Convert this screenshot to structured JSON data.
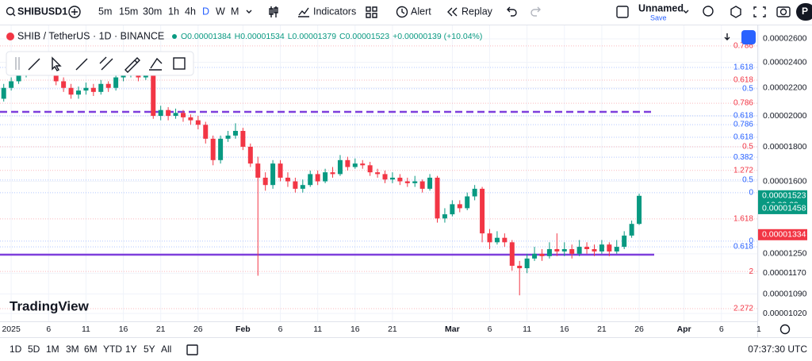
{
  "toolbar": {
    "symbol": "SHIBUSD1",
    "intervals": [
      "5m",
      "15m",
      "30m",
      "1h",
      "4h",
      "D",
      "W",
      "M"
    ],
    "active_interval": 5,
    "indicators": "Indicators",
    "alert": "Alert",
    "replay": "Replay",
    "layout_name": "Unnamed",
    "save": "Save",
    "avatar": "P"
  },
  "legend": {
    "title": "SHIB / TetherUS · 1D · BINANCE",
    "ohlc": [
      "O0.00001384",
      "H0.00001534",
      "L0.00001379",
      "C0.00001523",
      "+0.00000139 (+10.04%)"
    ]
  },
  "logo": "TradingView",
  "bottom_bar": {
    "ranges": [
      "1D",
      "5D",
      "1M",
      "3M",
      "6M",
      "YTD",
      "1Y",
      "5Y",
      "All"
    ],
    "clock": "07:37:30 UTC"
  },
  "chart_data": {
    "type": "candlestick",
    "log_scale": true,
    "up_color": "#089981",
    "down_color": "#f23645",
    "x": [
      0,
      1,
      2,
      3,
      4,
      5,
      6,
      7,
      8,
      9,
      10,
      11,
      12,
      13,
      14,
      15,
      16,
      17,
      18,
      19,
      20,
      21,
      22,
      23,
      24,
      25,
      26,
      27,
      28,
      29,
      30,
      31,
      32,
      33,
      34,
      35,
      36,
      37,
      38,
      39,
      40,
      41,
      42,
      43,
      44,
      45,
      46,
      47,
      48,
      49,
      50,
      51,
      52,
      53,
      54,
      55,
      56,
      57,
      58,
      59,
      60,
      61,
      62,
      63,
      64,
      65,
      66,
      67,
      68,
      69,
      70,
      71,
      72,
      73,
      74,
      75,
      76,
      77,
      78,
      79,
      80,
      81,
      82,
      83,
      84,
      85,
      86,
      87
    ],
    "open": [
      2.13e-05,
      2.15e-05,
      2.12e-05,
      2.2e-05,
      2.25e-05,
      2.3e-05,
      2.33e-05,
      2.35e-05,
      2.38e-05,
      2.42e-05,
      2.25e-05,
      2.2e-05,
      2.15e-05,
      2.18e-05,
      2.2e-05,
      2.17e-05,
      2.23e-05,
      2.2e-05,
      2.28e-05,
      2.3e-05,
      2.33e-05,
      2.28e-05,
      2.32e-05,
      2e-05,
      2.04e-05,
      2e-05,
      2.02e-05,
      1.99e-05,
      1.97e-05,
      1.94e-05,
      1.85e-05,
      1.72e-05,
      1.85e-05,
      1.87e-05,
      1.9e-05,
      1.8e-05,
      1.7e-05,
      1.62e-05,
      1.58e-05,
      1.7e-05,
      1.62e-05,
      1.6e-05,
      1.56e-05,
      1.58e-05,
      1.64e-05,
      1.6e-05,
      1.65e-05,
      1.64e-05,
      1.72e-05,
      1.68e-05,
      1.7e-05,
      1.69e-05,
      1.65e-05,
      1.64e-05,
      1.61e-05,
      1.62e-05,
      1.6e-05,
      1.59e-05,
      1.6e-05,
      1.56e-05,
      1.62e-05,
      1.41e-05,
      1.43e-05,
      1.48e-05,
      1.46e-05,
      1.52e-05,
      1.56e-05,
      1.34e-05,
      1.3e-05,
      1.32e-05,
      1.3e-05,
      1.2e-05,
      1.19e-05,
      1.23e-05,
      1.25e-05,
      1.24e-05,
      1.27e-05,
      1.26e-05,
      1.27e-05,
      1.25e-05,
      1.28e-05,
      1.27e-05,
      1.26e-05,
      1.29e-05,
      1.26e-05,
      1.28e-05,
      1.33e-05,
      1.384e-05
    ],
    "high": [
      2.18e-05,
      2.17e-05,
      2.23e-05,
      2.28e-05,
      2.33e-05,
      2.36e-05,
      2.39e-05,
      2.42e-05,
      2.46e-05,
      2.44e-05,
      2.28e-05,
      2.23e-05,
      2.21e-05,
      2.24e-05,
      2.23e-05,
      2.26e-05,
      2.25e-05,
      2.31e-05,
      2.34e-05,
      2.37e-05,
      2.35e-05,
      2.36e-05,
      2.34e-05,
      2.07e-05,
      2.06e-05,
      2.05e-05,
      2.04e-05,
      2.01e-05,
      2e-05,
      1.96e-05,
      1.87e-05,
      1.87e-05,
      1.9e-05,
      1.95e-05,
      1.92e-05,
      1.82e-05,
      1.74e-05,
      1.65e-05,
      1.72e-05,
      1.72e-05,
      1.65e-05,
      1.62e-05,
      1.61e-05,
      1.66e-05,
      1.66e-05,
      1.67e-05,
      1.68e-05,
      1.75e-05,
      1.74e-05,
      1.73e-05,
      1.72e-05,
      1.71e-05,
      1.67e-05,
      1.66e-05,
      1.65e-05,
      1.64e-05,
      1.62e-05,
      1.63e-05,
      1.61e-05,
      1.64e-05,
      1.63e-05,
      1.46e-05,
      1.5e-05,
      1.5e-05,
      1.54e-05,
      1.58e-05,
      1.57e-05,
      1.36e-05,
      1.35e-05,
      1.34e-05,
      1.31e-05,
      1.22e-05,
      1.25e-05,
      1.28e-05,
      1.27e-05,
      1.3e-05,
      1.34e-05,
      1.3e-05,
      1.29e-05,
      1.31e-05,
      1.3e-05,
      1.29e-05,
      1.31e-05,
      1.3e-05,
      1.31e-05,
      1.35e-05,
      1.4e-05,
      1.534e-05
    ],
    "low": [
      2.1e-05,
      2.09e-05,
      2.1e-05,
      2.18e-05,
      2.23e-05,
      2.28e-05,
      2.3e-05,
      2.32e-05,
      2.36e-05,
      2.22e-05,
      2.17e-05,
      2.12e-05,
      2.12e-05,
      2.15e-05,
      2.14e-05,
      2.15e-05,
      2.17e-05,
      2.18e-05,
      2.25e-05,
      2.28e-05,
      2.25e-05,
      2.26e-05,
      1.98e-05,
      1.97e-05,
      1.97e-05,
      1.98e-05,
      1.96e-05,
      1.94e-05,
      1.91e-05,
      1.82e-05,
      1.69e-05,
      1.7e-05,
      1.83e-05,
      1.85e-05,
      1.78e-05,
      1.68e-05,
      1.16e-05,
      1.55e-05,
      1.56e-05,
      1.6e-05,
      1.57e-05,
      1.54e-05,
      1.54e-05,
      1.57e-05,
      1.58e-05,
      1.59e-05,
      1.62e-05,
      1.63e-05,
      1.66e-05,
      1.67e-05,
      1.67e-05,
      1.63e-05,
      1.62e-05,
      1.59e-05,
      1.59e-05,
      1.58e-05,
      1.57e-05,
      1.57e-05,
      1.54e-05,
      1.55e-05,
      1.39e-05,
      1.39e-05,
      1.42e-05,
      1.44e-05,
      1.45e-05,
      1.5e-05,
      1.3e-05,
      1.27e-05,
      1.29e-05,
      1.28e-05,
      1.18e-05,
      1.085e-05,
      1.17e-05,
      1.22e-05,
      1.22e-05,
      1.23e-05,
      1.24e-05,
      1.24e-05,
      1.23e-05,
      1.24e-05,
      1.25e-05,
      1.24e-05,
      1.25e-05,
      1.24e-05,
      1.25e-05,
      1.27e-05,
      1.32e-05,
      1.379e-05
    ],
    "close": [
      2.15e-05,
      2.12e-05,
      2.2e-05,
      2.25e-05,
      2.3e-05,
      2.33e-05,
      2.35e-05,
      2.38e-05,
      2.42e-05,
      2.25e-05,
      2.2e-05,
      2.15e-05,
      2.18e-05,
      2.2e-05,
      2.17e-05,
      2.23e-05,
      2.2e-05,
      2.28e-05,
      2.3e-05,
      2.33e-05,
      2.28e-05,
      2.32e-05,
      2e-05,
      2.04e-05,
      2e-05,
      2.02e-05,
      1.99e-05,
      1.97e-05,
      1.94e-05,
      1.85e-05,
      1.72e-05,
      1.85e-05,
      1.87e-05,
      1.9e-05,
      1.8e-05,
      1.7e-05,
      1.62e-05,
      1.58e-05,
      1.7e-05,
      1.62e-05,
      1.6e-05,
      1.56e-05,
      1.58e-05,
      1.64e-05,
      1.6e-05,
      1.65e-05,
      1.64e-05,
      1.72e-05,
      1.68e-05,
      1.7e-05,
      1.69e-05,
      1.65e-05,
      1.64e-05,
      1.61e-05,
      1.62e-05,
      1.6e-05,
      1.59e-05,
      1.6e-05,
      1.56e-05,
      1.62e-05,
      1.41e-05,
      1.43e-05,
      1.48e-05,
      1.46e-05,
      1.52e-05,
      1.56e-05,
      1.34e-05,
      1.3e-05,
      1.32e-05,
      1.3e-05,
      1.2e-05,
      1.19e-05,
      1.23e-05,
      1.25e-05,
      1.24e-05,
      1.27e-05,
      1.26e-05,
      1.27e-05,
      1.25e-05,
      1.28e-05,
      1.27e-05,
      1.26e-05,
      1.29e-05,
      1.26e-05,
      1.28e-05,
      1.33e-05,
      1.384e-05,
      1.523e-05
    ],
    "xlim": [
      1.5,
      102.8
    ],
    "xticks": [
      {
        "value": 3,
        "label": "2025"
      },
      {
        "value": 8,
        "label": "6"
      },
      {
        "value": 13,
        "label": "11"
      },
      {
        "value": 18,
        "label": "16"
      },
      {
        "value": 23,
        "label": "21"
      },
      {
        "value": 28,
        "label": "26"
      },
      {
        "value": 34,
        "label": "Feb"
      },
      {
        "value": 39,
        "label": "6"
      },
      {
        "value": 44,
        "label": "11"
      },
      {
        "value": 49,
        "label": "16"
      },
      {
        "value": 54,
        "label": "21"
      },
      {
        "value": 62,
        "label": "Mar"
      },
      {
        "value": 67,
        "label": "6"
      },
      {
        "value": 72,
        "label": "11"
      },
      {
        "value": 77,
        "label": "16"
      },
      {
        "value": 82,
        "label": "21"
      },
      {
        "value": 87,
        "label": "26"
      },
      {
        "value": 93,
        "label": "Apr"
      },
      {
        "value": 98,
        "label": "6"
      },
      {
        "value": 103,
        "label": "1"
      }
    ],
    "ylim": [
      9.93e-06,
      2.7e-05
    ],
    "yticks": [
      {
        "value": 2.6e-05,
        "label": "0.00002600"
      },
      {
        "value": 2.4e-05,
        "label": "0.00002400"
      },
      {
        "value": 2.2e-05,
        "label": "0.00002200"
      },
      {
        "value": 2e-05,
        "label": "0.00002000"
      },
      {
        "value": 1.8e-05,
        "label": "0.00001800"
      },
      {
        "value": 1.6e-05,
        "label": "0.00001600"
      },
      {
        "value": 1.25e-05,
        "label": "0.00001250"
      },
      {
        "value": 1.17e-05,
        "label": "0.00001170"
      },
      {
        "value": 1.09e-05,
        "label": "0.00001090"
      },
      {
        "value": 1.02e-05,
        "label": "0.00001020"
      }
    ],
    "fib_levels": [
      {
        "label": "0.786",
        "value": 2.538e-05,
        "color": "#f23645"
      },
      {
        "label": "1.618",
        "value": 2.359e-05,
        "color": "#2962ff"
      },
      {
        "label": "0.618",
        "value": 2.259e-05,
        "color": "#f23645"
      },
      {
        "label": "0.5",
        "value": 2.193e-05,
        "color": "#2962ff"
      },
      {
        "label": "0.786",
        "value": 2.088e-05,
        "color": "#f23645"
      },
      {
        "label": "0.618",
        "value": 2e-05,
        "color": "#2962ff"
      },
      {
        "label": "0.786",
        "value": 1.941e-05,
        "color": "#2962ff"
      },
      {
        "label": "0.618",
        "value": 1.859e-05,
        "color": "#2962ff"
      },
      {
        "label": "0.5",
        "value": 1.8e-05,
        "color": "#f23645"
      },
      {
        "label": "0.382",
        "value": 1.737e-05,
        "color": "#2962ff"
      },
      {
        "label": "1.272",
        "value": 1.661e-05,
        "color": "#f23645"
      },
      {
        "label": "0.5",
        "value": 1.607e-05,
        "color": "#2962ff"
      },
      {
        "label": "0",
        "value": 1.539e-05,
        "color": "#2962ff"
      },
      {
        "label": "1.618",
        "value": 1.408e-05,
        "color": "#f23645"
      },
      {
        "label": "0",
        "value": 1.305e-05,
        "color": "#2962ff"
      },
      {
        "label": "0.618",
        "value": 1.28e-05,
        "color": "#2962ff"
      },
      {
        "label": "2",
        "value": 1.177e-05,
        "color": "#f23645"
      },
      {
        "label": "2.272",
        "value": 1.037e-05,
        "color": "#f23645"
      }
    ],
    "levels": [
      {
        "value": 2.027e-05,
        "color": "#7e3fdc",
        "dashed": true
      },
      {
        "value": 1.246e-05,
        "color": "#7e3fdc",
        "dashed": false
      }
    ],
    "price_labels": [
      {
        "value": 1.523e-05,
        "label": "0.00001523",
        "sub": "16:22:29",
        "color": "#089981"
      },
      {
        "value": 1.458e-05,
        "label": "0.00001458",
        "color": "#089981"
      },
      {
        "value": 1.334e-05,
        "label": "0.00001334",
        "color": "#f23645"
      }
    ]
  }
}
